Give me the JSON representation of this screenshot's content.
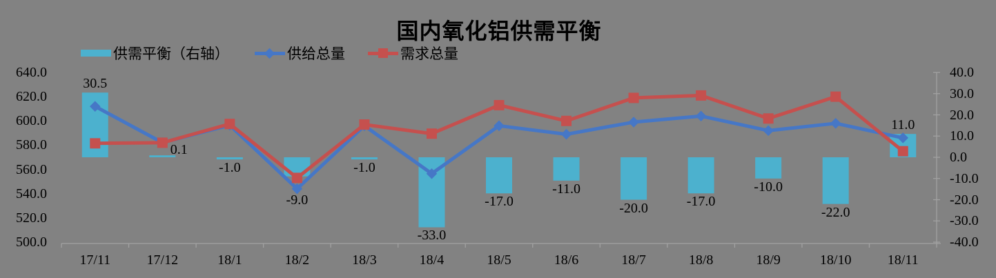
{
  "title": "国内氧化铝供需平衡",
  "colors": {
    "background": "#828282",
    "bar": "#4cb1ce",
    "supply_line": "#4677c6",
    "demand_line": "#c5504e",
    "axis_line": "#a2a2a2",
    "text": "#000000"
  },
  "legend": {
    "items": [
      {
        "label": "供需平衡（右轴）",
        "marker": "bar-swatch"
      },
      {
        "label": "供给总量",
        "marker": "line-diamond"
      },
      {
        "label": "需求总量",
        "marker": "line-square"
      }
    ]
  },
  "chart_data": {
    "type": "combo-bar-line",
    "title": "国内氧化铝供需平衡",
    "categories": [
      "17/11",
      "17/12",
      "18/1",
      "18/2",
      "18/3",
      "18/4",
      "18/5",
      "18/6",
      "18/7",
      "18/8",
      "18/9",
      "18/10",
      "18/11"
    ],
    "series": [
      {
        "name": "供需平衡（右轴）",
        "type": "bar",
        "axis": "right",
        "color": "#4cb1ce",
        "values": [
          30.5,
          0.1,
          -1.0,
          -9.0,
          -1.0,
          -33.0,
          -17.0,
          -11.0,
          -20.0,
          -17.0,
          -10.0,
          -22.0,
          11.0
        ],
        "data_labels": [
          "30.5",
          "0.1",
          "-1.0",
          "-9.0",
          "-1.0",
          "-33.0",
          "-17.0",
          "-11.0",
          "-20.0",
          "-17.0",
          "-10.0",
          "-22.0",
          "11.0"
        ],
        "label_dx": [
          0,
          24,
          0,
          0,
          0,
          0,
          0,
          0,
          0,
          0,
          0,
          0,
          0
        ],
        "label_dy": [
          0,
          5,
          0,
          22,
          0,
          0,
          0,
          0,
          0,
          0,
          0,
          0,
          0
        ]
      },
      {
        "name": "供给总量",
        "type": "line",
        "axis": "left",
        "marker": "diamond",
        "color": "#4677c6",
        "values": [
          612,
          582.1,
          596.5,
          544,
          596,
          556.5,
          596,
          589,
          599,
          604,
          592,
          598,
          586
        ]
      },
      {
        "name": "需求总量",
        "type": "line",
        "axis": "left",
        "marker": "square",
        "color": "#c5504e",
        "values": [
          581.5,
          582,
          597.5,
          553,
          597,
          589.5,
          613,
          600,
          619,
          621,
          602,
          620,
          575
        ]
      }
    ],
    "left_axis": {
      "min": 500,
      "max": 640,
      "step": 20,
      "labels": [
        "640.0",
        "620.0",
        "600.0",
        "580.0",
        "560.0",
        "540.0",
        "520.0",
        "500.0"
      ]
    },
    "right_axis": {
      "min": -40,
      "max": 40,
      "step": 10,
      "labels": [
        "40.0",
        "30.0",
        "20.0",
        "10.0",
        "0.0",
        "-10.0",
        "-20.0",
        "-30.0",
        "-40.0"
      ]
    },
    "legend_position": "top",
    "gridlines": false
  }
}
